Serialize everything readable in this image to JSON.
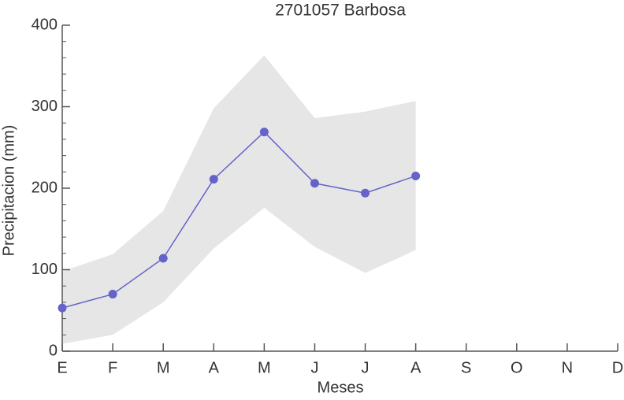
{
  "chart_data": {
    "type": "line",
    "title": "2701057 Barbosa",
    "xlabel": "Meses",
    "ylabel": "Precipitacion (mm)",
    "categories": [
      "E",
      "F",
      "M",
      "A",
      "M",
      "J",
      "J",
      "A",
      "S",
      "O",
      "N",
      "D"
    ],
    "series": [
      {
        "color": "#6363c9",
        "values": [
          53,
          70,
          114,
          211,
          269,
          206,
          194,
          215,
          null,
          null,
          null,
          null
        ]
      }
    ],
    "band": {
      "color": "#e6e6e6",
      "upper": [
        98,
        119,
        172,
        298,
        363,
        286,
        294,
        307,
        null,
        null,
        null,
        null
      ],
      "lower": [
        9,
        20,
        60,
        126,
        176,
        128,
        96,
        124,
        null,
        null,
        null,
        null
      ]
    },
    "ylim": [
      0,
      400
    ],
    "yticks": [
      0,
      100,
      200,
      300,
      400
    ]
  }
}
